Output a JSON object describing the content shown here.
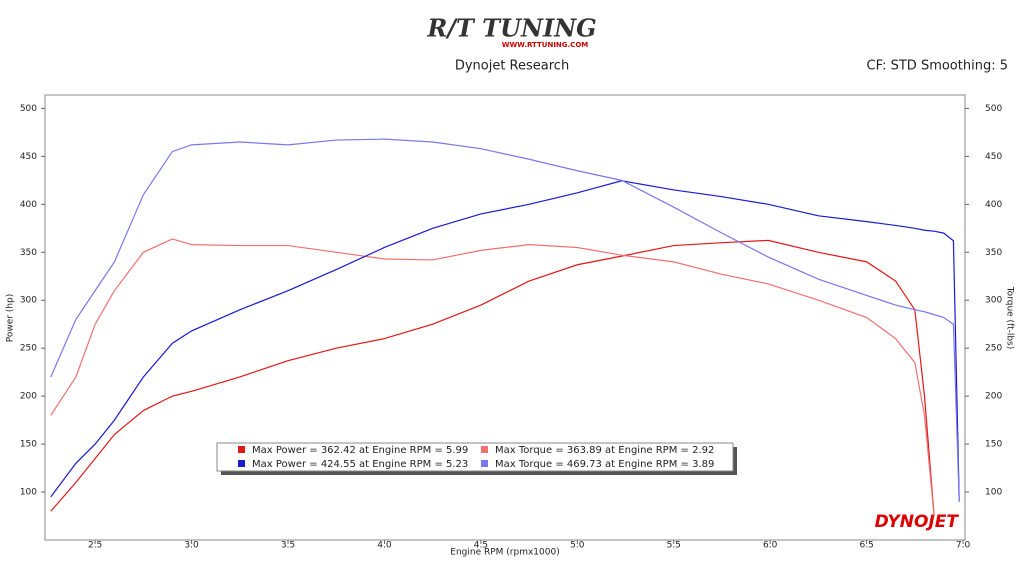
{
  "header": {
    "logo": "R/T TUNING",
    "logo_url": "WWW.RTTUNING.COM",
    "brand": "DYNOJET"
  },
  "chart_data": {
    "type": "line",
    "title": "Dynojet Research",
    "subtitle": "CF: STD Smoothing: 5",
    "x_label": "Engine RPM (rpmx1000)",
    "y_label": "Power (hp)",
    "y2_label": "Torque (ft-lbs)",
    "x": [
      2.27,
      2.4,
      2.5,
      2.6,
      2.75,
      2.9,
      3.0,
      3.25,
      3.5,
      3.75,
      4.0,
      4.25,
      4.5,
      4.75,
      5.0,
      5.23,
      5.5,
      5.75,
      5.99,
      6.25,
      6.5,
      6.65,
      6.75,
      6.8,
      6.85,
      6.9,
      6.95,
      6.98
    ],
    "series": [
      {
        "name": "Max Power = 362.42 at Engine RPM = 5.99",
        "color": "#e01818",
        "values": [
          80,
          110,
          135,
          160,
          185,
          200,
          205,
          220,
          237,
          250,
          260,
          275,
          295,
          320,
          337,
          346,
          357,
          360,
          362.42,
          350,
          340,
          320,
          290,
          200,
          75,
          null,
          null,
          null
        ]
      },
      {
        "name": "Max Torque = 363.89 at Engine RPM = 2.92",
        "color": "#f07070",
        "values": [
          180,
          220,
          275,
          310,
          350,
          363.89,
          358,
          357,
          357,
          350,
          343,
          342,
          352,
          358,
          355,
          347,
          340,
          327,
          317,
          300,
          282,
          260,
          235,
          180,
          75,
          null,
          null,
          null
        ]
      },
      {
        "name": "Max Power = 424.55 at Engine RPM = 5.23",
        "color": "#1a1ad0",
        "values": [
          95,
          130,
          150,
          175,
          220,
          255,
          268,
          290,
          310,
          332,
          355,
          375,
          390,
          400,
          412,
          424.55,
          415,
          408,
          400,
          388,
          382,
          378,
          375,
          373,
          372,
          370,
          362,
          90
        ]
      },
      {
        "name": "Max Torque = 469.73 at Engine RPM = 3.89",
        "color": "#7878ec",
        "values": [
          220,
          280,
          310,
          340,
          410,
          455,
          462,
          465,
          462,
          467,
          468,
          465,
          458,
          447,
          435,
          425,
          397,
          370,
          345,
          322,
          305,
          295,
          290,
          288,
          285,
          282,
          275,
          90
        ],
        "axis": "y2"
      }
    ],
    "xlim": [
      2.24,
      7.01
    ],
    "xticks": [
      2.5,
      {
        "value": 3,
        "label": "3.0"
      },
      3.5,
      {
        "value": 4,
        "label": "4.0"
      },
      4.5,
      {
        "value": 5,
        "label": "5.0"
      },
      5.5,
      {
        "value": 6,
        "label": "6.0"
      },
      6.5,
      {
        "value": 7,
        "label": "7.0"
      }
    ],
    "ylim": [
      50,
      514
    ],
    "yticks": [
      100,
      150,
      200,
      250,
      300,
      350,
      400,
      450,
      500
    ],
    "y2lim": [
      50,
      514
    ],
    "y2ticks": [
      100,
      150,
      200,
      250,
      300,
      350,
      400,
      450,
      500
    ],
    "grid": false
  }
}
